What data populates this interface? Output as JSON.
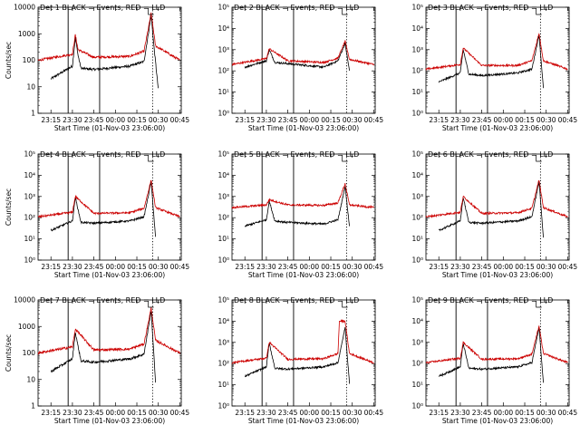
{
  "chart_data": [
    {
      "type": "line",
      "title": "Det 1  BLACK = Events, RED = LLD",
      "ylabel": "Counts/sec",
      "xlabel": "Start Time (01-Nov-03 23:06:00)",
      "xticks": [
        "23:15",
        "23:30",
        "23:45",
        "00:00",
        "00:15",
        "00:30",
        "00:45"
      ],
      "yscale": "log",
      "ylim": [
        1,
        10000
      ],
      "yticks": [
        "1",
        "10",
        "100",
        "1000",
        "10000"
      ],
      "solid_vlines": [
        "23:27",
        "23:49"
      ],
      "dotted_vlines": [
        "00:26",
        "00:46"
      ],
      "series": [
        {
          "color": "#000000",
          "profile": "p1",
          "points": [
            [
              "23:15",
              20
            ],
            [
              "23:30",
              60
            ],
            [
              "23:32",
              700
            ],
            [
              "23:34",
              150
            ],
            [
              "23:36",
              50
            ],
            [
              "23:45",
              45
            ],
            [
              "00:10",
              60
            ],
            [
              "00:20",
              90
            ],
            [
              "00:25",
              5000
            ],
            [
              "00:27",
              300
            ],
            [
              "00:30",
              8
            ]
          ]
        },
        {
          "color": "#cc0000",
          "profile": "p1",
          "points": [
            [
              "23:06",
              100
            ],
            [
              "23:30",
              170
            ],
            [
              "23:32",
              900
            ],
            [
              "23:34",
              250
            ],
            [
              "23:45",
              130
            ],
            [
              "00:10",
              140
            ],
            [
              "00:20",
              220
            ],
            [
              "00:25",
              6000
            ],
            [
              "00:28",
              350
            ],
            [
              "00:45",
              100
            ]
          ]
        }
      ]
    },
    {
      "type": "line",
      "title": "Det 2  BLACK = Events, RED = LLD",
      "ylabel": "",
      "xlabel": "Start Time (01-Nov-03 23:06:00)",
      "xticks": [
        "23:15",
        "23:30",
        "23:45",
        "00:00",
        "00:15",
        "00:30",
        "00:45"
      ],
      "yscale": "log",
      "ylim": [
        1,
        100000
      ],
      "yticks": [
        "10⁰",
        "10¹",
        "10²",
        "10³",
        "10⁴",
        "10⁵"
      ],
      "solid_vlines": [
        "23:27",
        "23:49"
      ],
      "dotted_vlines": [
        "00:26",
        "00:46"
      ],
      "series": [
        {
          "color": "#000000",
          "profile": "p2",
          "points": [
            [
              "23:15",
              150
            ],
            [
              "23:30",
              300
            ],
            [
              "23:32",
              1000
            ],
            [
              "23:36",
              250
            ],
            [
              "23:45",
              220
            ],
            [
              "00:10",
              150
            ],
            [
              "00:20",
              300
            ],
            [
              "00:25",
              2000
            ],
            [
              "00:28",
              100
            ]
          ]
        },
        {
          "color": "#cc0000",
          "profile": "p2",
          "points": [
            [
              "23:06",
              200
            ],
            [
              "23:30",
              380
            ],
            [
              "23:32",
              1100
            ],
            [
              "23:45",
              300
            ],
            [
              "00:10",
              250
            ],
            [
              "00:20",
              400
            ],
            [
              "00:25",
              2500
            ],
            [
              "00:28",
              350
            ],
            [
              "00:45",
              200
            ]
          ]
        }
      ]
    },
    {
      "type": "line",
      "title": "Det 3  BLACK = Events, RED = LLD",
      "ylabel": "",
      "xlabel": "Start Time (01-Nov-03 23:06:00)",
      "xticks": [
        "23:15",
        "23:30",
        "23:45",
        "00:00",
        "00:15",
        "00:30",
        "00:45"
      ],
      "yscale": "log",
      "ylim": [
        1,
        100000
      ],
      "yticks": [
        "10⁰",
        "10¹",
        "10²",
        "10³",
        "10⁴",
        "10⁵"
      ],
      "solid_vlines": [
        "23:27",
        "23:49"
      ],
      "dotted_vlines": [
        "00:26",
        "00:46"
      ],
      "series": [
        {
          "color": "#000000",
          "profile": "p1",
          "points": [
            [
              "23:15",
              30
            ],
            [
              "23:30",
              80
            ],
            [
              "23:32",
              1000
            ],
            [
              "23:36",
              70
            ],
            [
              "23:45",
              60
            ],
            [
              "00:10",
              80
            ],
            [
              "00:20",
              120
            ],
            [
              "00:25",
              5000
            ],
            [
              "00:28",
              15
            ]
          ]
        },
        {
          "color": "#cc0000",
          "profile": "p1",
          "points": [
            [
              "23:06",
              120
            ],
            [
              "23:30",
              200
            ],
            [
              "23:32",
              1200
            ],
            [
              "23:45",
              180
            ],
            [
              "00:10",
              180
            ],
            [
              "00:20",
              300
            ],
            [
              "00:25",
              6000
            ],
            [
              "00:28",
              300
            ],
            [
              "00:45",
              120
            ]
          ]
        }
      ]
    },
    {
      "type": "line",
      "title": "Det 4  BLACK = Events, RED = LLD",
      "ylabel": "Counts/sec",
      "xlabel": "Start Time (01-Nov-03 23:06:00)",
      "xticks": [
        "23:15",
        "23:30",
        "23:45",
        "00:00",
        "00:15",
        "00:30",
        "00:45"
      ],
      "yscale": "log",
      "ylim": [
        1,
        100000
      ],
      "yticks": [
        "10⁰",
        "10¹",
        "10²",
        "10³",
        "10⁴",
        "10⁵"
      ],
      "solid_vlines": [
        "23:27",
        "23:49"
      ],
      "dotted_vlines": [
        "00:26",
        "00:46"
      ],
      "series": [
        {
          "color": "#000000",
          "profile": "p1",
          "points": [
            [
              "23:15",
              25
            ],
            [
              "23:30",
              70
            ],
            [
              "23:32",
              900
            ],
            [
              "23:36",
              60
            ],
            [
              "23:45",
              55
            ],
            [
              "00:10",
              70
            ],
            [
              "00:20",
              110
            ],
            [
              "00:25",
              5000
            ],
            [
              "00:28",
              12
            ]
          ]
        },
        {
          "color": "#cc0000",
          "profile": "p1",
          "points": [
            [
              "23:06",
              110
            ],
            [
              "23:30",
              180
            ],
            [
              "23:32",
              1000
            ],
            [
              "23:45",
              160
            ],
            [
              "00:10",
              170
            ],
            [
              "00:20",
              280
            ],
            [
              "00:25",
              6000
            ],
            [
              "00:28",
              300
            ],
            [
              "00:45",
              110
            ]
          ]
        }
      ]
    },
    {
      "type": "line",
      "title": "Det 5  BLACK = Events, RED = LLD",
      "ylabel": "",
      "xlabel": "Start Time (01-Nov-03 23:06:00)",
      "xticks": [
        "23:15",
        "23:30",
        "23:45",
        "00:00",
        "00:15",
        "00:30",
        "00:45"
      ],
      "yscale": "log",
      "ylim": [
        1,
        100000
      ],
      "yticks": [
        "10⁰",
        "10¹",
        "10²",
        "10³",
        "10⁴",
        "10⁵"
      ],
      "solid_vlines": [
        "23:27",
        "23:49"
      ],
      "dotted_vlines": [
        "00:26",
        "00:46"
      ],
      "series": [
        {
          "color": "#000000",
          "profile": "p2",
          "points": [
            [
              "23:15",
              40
            ],
            [
              "23:30",
              80
            ],
            [
              "23:32",
              600
            ],
            [
              "23:36",
              70
            ],
            [
              "23:45",
              60
            ],
            [
              "00:10",
              50
            ],
            [
              "00:20",
              80
            ],
            [
              "00:25",
              3000
            ],
            [
              "00:28",
              40
            ]
          ]
        },
        {
          "color": "#cc0000",
          "profile": "p2",
          "points": [
            [
              "23:06",
              300
            ],
            [
              "23:30",
              400
            ],
            [
              "23:32",
              700
            ],
            [
              "23:45",
              400
            ],
            [
              "00:10",
              380
            ],
            [
              "00:20",
              500
            ],
            [
              "00:25",
              4000
            ],
            [
              "00:28",
              400
            ],
            [
              "00:45",
              300
            ]
          ]
        }
      ]
    },
    {
      "type": "line",
      "title": "Det 6  BLACK = Events, RED = LLD",
      "ylabel": "",
      "xlabel": "Start Time (01-Nov-03 23:06:00)",
      "xticks": [
        "23:15",
        "23:30",
        "23:45",
        "00:00",
        "00:15",
        "00:30",
        "00:45"
      ],
      "yscale": "log",
      "ylim": [
        1,
        100000
      ],
      "yticks": [
        "10⁰",
        "10¹",
        "10²",
        "10³",
        "10⁴",
        "10⁵"
      ],
      "solid_vlines": [
        "23:27",
        "23:49"
      ],
      "dotted_vlines": [
        "00:26",
        "00:46"
      ],
      "series": [
        {
          "color": "#000000",
          "profile": "p1",
          "points": [
            [
              "23:15",
              25
            ],
            [
              "23:30",
              70
            ],
            [
              "23:32",
              900
            ],
            [
              "23:36",
              60
            ],
            [
              "23:45",
              55
            ],
            [
              "00:10",
              70
            ],
            [
              "00:20",
              110
            ],
            [
              "00:25",
              5000
            ],
            [
              "00:28",
              12
            ]
          ]
        },
        {
          "color": "#cc0000",
          "profile": "p1",
          "points": [
            [
              "23:06",
              110
            ],
            [
              "23:30",
              180
            ],
            [
              "23:32",
              1000
            ],
            [
              "23:45",
              160
            ],
            [
              "00:10",
              170
            ],
            [
              "00:20",
              280
            ],
            [
              "00:25",
              6000
            ],
            [
              "00:28",
              300
            ],
            [
              "00:45",
              110
            ]
          ]
        }
      ]
    },
    {
      "type": "line",
      "title": "Det 7  BLACK = Events, RED = LLD",
      "ylabel": "Counts/sec",
      "xlabel": "Start Time (01-Nov-03 23:06:00)",
      "xticks": [
        "23:15",
        "23:30",
        "23:45",
        "00:00",
        "00:15",
        "00:30",
        "00:45"
      ],
      "yscale": "log",
      "ylim": [
        1,
        10000
      ],
      "yticks": [
        "1",
        "10",
        "100",
        "1000",
        "10000"
      ],
      "solid_vlines": [
        "23:27",
        "23:49"
      ],
      "dotted_vlines": [
        "00:26",
        "00:46"
      ],
      "series": [
        {
          "color": "#000000",
          "profile": "p1",
          "points": [
            [
              "23:15",
              20
            ],
            [
              "23:30",
              60
            ],
            [
              "23:32",
              600
            ],
            [
              "23:36",
              50
            ],
            [
              "23:45",
              45
            ],
            [
              "00:10",
              60
            ],
            [
              "00:20",
              90
            ],
            [
              "00:25",
              4000
            ],
            [
              "00:28",
              8
            ]
          ]
        },
        {
          "color": "#cc0000",
          "profile": "p1",
          "points": [
            [
              "23:06",
              100
            ],
            [
              "23:30",
              170
            ],
            [
              "23:32",
              800
            ],
            [
              "23:45",
              130
            ],
            [
              "00:10",
              140
            ],
            [
              "00:20",
              220
            ],
            [
              "00:25",
              5000
            ],
            [
              "00:28",
              300
            ],
            [
              "00:45",
              100
            ]
          ]
        }
      ]
    },
    {
      "type": "line",
      "title": "Det 8  BLACK = Events, RED = LLD",
      "ylabel": "",
      "xlabel": "Start Time (01-Nov-03 23:06:00)",
      "xticks": [
        "23:15",
        "23:30",
        "23:45",
        "00:00",
        "00:15",
        "00:30",
        "00:45"
      ],
      "yscale": "log",
      "ylim": [
        1,
        100000
      ],
      "yticks": [
        "10⁰",
        "10¹",
        "10²",
        "10³",
        "10⁴",
        "10⁵"
      ],
      "solid_vlines": [
        "23:27",
        "23:49"
      ],
      "dotted_vlines": [
        "00:26",
        "00:46"
      ],
      "series": [
        {
          "color": "#000000",
          "profile": "p3",
          "points": [
            [
              "23:15",
              25
            ],
            [
              "23:30",
              70
            ],
            [
              "23:32",
              900
            ],
            [
              "23:36",
              60
            ],
            [
              "23:45",
              55
            ],
            [
              "00:10",
              70
            ],
            [
              "00:20",
              110
            ],
            [
              "00:25",
              5000
            ],
            [
              "00:28",
              12
            ]
          ]
        },
        {
          "color": "#cc0000",
          "profile": "p3",
          "points": [
            [
              "23:06",
              110
            ],
            [
              "23:30",
              180
            ],
            [
              "23:32",
              1000
            ],
            [
              "23:45",
              160
            ],
            [
              "00:10",
              170
            ],
            [
              "00:20",
              300
            ],
            [
              "00:21",
              10000
            ],
            [
              "00:25",
              10000
            ],
            [
              "00:28",
              300
            ],
            [
              "00:45",
              110
            ]
          ]
        }
      ]
    },
    {
      "type": "line",
      "title": "Det 9  BLACK = Events, RED = LLD",
      "ylabel": "",
      "xlabel": "Start Time (01-Nov-03 23:06:00)",
      "xticks": [
        "23:15",
        "23:30",
        "23:45",
        "00:00",
        "00:15",
        "00:30",
        "00:45"
      ],
      "yscale": "log",
      "ylim": [
        1,
        100000
      ],
      "yticks": [
        "10⁰",
        "10¹",
        "10²",
        "10³",
        "10⁴",
        "10⁵"
      ],
      "solid_vlines": [
        "23:27",
        "23:49"
      ],
      "dotted_vlines": [
        "00:26",
        "00:46"
      ],
      "series": [
        {
          "color": "#000000",
          "profile": "p1",
          "points": [
            [
              "23:15",
              25
            ],
            [
              "23:30",
              70
            ],
            [
              "23:32",
              900
            ],
            [
              "23:36",
              60
            ],
            [
              "23:45",
              55
            ],
            [
              "00:10",
              70
            ],
            [
              "00:20",
              110
            ],
            [
              "00:25",
              5000
            ],
            [
              "00:28",
              12
            ]
          ]
        },
        {
          "color": "#cc0000",
          "profile": "p1",
          "points": [
            [
              "23:06",
              110
            ],
            [
              "23:30",
              180
            ],
            [
              "23:32",
              1000
            ],
            [
              "23:45",
              160
            ],
            [
              "00:10",
              170
            ],
            [
              "00:20",
              280
            ],
            [
              "00:25",
              6000
            ],
            [
              "00:28",
              300
            ],
            [
              "00:45",
              110
            ]
          ]
        }
      ]
    }
  ]
}
